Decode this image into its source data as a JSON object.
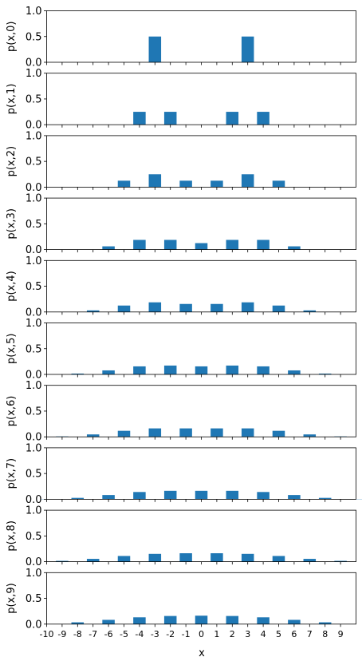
{
  "chart_data": {
    "type": "bar",
    "xlabel": "x",
    "x_ticks": [
      "-10",
      "-9",
      "-8",
      "-7",
      "-6",
      "-5",
      "-4",
      "-3",
      "-2",
      "-1",
      "0",
      "1",
      "2",
      "3",
      "4",
      "5",
      "6",
      "7",
      "8",
      "9"
    ],
    "x_range": [
      -10,
      10
    ],
    "ylim": [
      0,
      1.0
    ],
    "y_ticks": [
      "0.0",
      "0.5",
      "1.0"
    ],
    "bar_color": "#1f77b4",
    "grid": false,
    "subplots": [
      {
        "ylabel": "p(x,0)",
        "bars": [
          {
            "x": -3,
            "y": 0.5
          },
          {
            "x": 3,
            "y": 0.5
          }
        ]
      },
      {
        "ylabel": "p(x,1)",
        "bars": [
          {
            "x": -4,
            "y": 0.25
          },
          {
            "x": -2,
            "y": 0.25
          },
          {
            "x": 2,
            "y": 0.25
          },
          {
            "x": 4,
            "y": 0.25
          }
        ]
      },
      {
        "ylabel": "p(x,2)",
        "bars": [
          {
            "x": -5,
            "y": 0.125
          },
          {
            "x": -3,
            "y": 0.25
          },
          {
            "x": -1,
            "y": 0.125
          },
          {
            "x": 1,
            "y": 0.125
          },
          {
            "x": 3,
            "y": 0.25
          },
          {
            "x": 5,
            "y": 0.125
          }
        ]
      },
      {
        "ylabel": "p(x,3)",
        "bars": [
          {
            "x": -6,
            "y": 0.0625
          },
          {
            "x": -4,
            "y": 0.1875
          },
          {
            "x": -2,
            "y": 0.1875
          },
          {
            "x": 0,
            "y": 0.125
          },
          {
            "x": 2,
            "y": 0.1875
          },
          {
            "x": 4,
            "y": 0.1875
          },
          {
            "x": 6,
            "y": 0.0625
          }
        ]
      },
      {
        "ylabel": "p(x,4)",
        "bars": [
          {
            "x": -7,
            "y": 0.031
          },
          {
            "x": -5,
            "y": 0.125
          },
          {
            "x": -3,
            "y": 0.1875
          },
          {
            "x": -1,
            "y": 0.156
          },
          {
            "x": 1,
            "y": 0.156
          },
          {
            "x": 3,
            "y": 0.1875
          },
          {
            "x": 5,
            "y": 0.125
          },
          {
            "x": 7,
            "y": 0.031
          }
        ]
      },
      {
        "ylabel": "p(x,5)",
        "bars": [
          {
            "x": -8,
            "y": 0.016
          },
          {
            "x": -6,
            "y": 0.078
          },
          {
            "x": -4,
            "y": 0.156
          },
          {
            "x": -2,
            "y": 0.172
          },
          {
            "x": 0,
            "y": 0.156
          },
          {
            "x": 2,
            "y": 0.172
          },
          {
            "x": 4,
            "y": 0.156
          },
          {
            "x": 6,
            "y": 0.078
          },
          {
            "x": 8,
            "y": 0.016
          }
        ]
      },
      {
        "ylabel": "p(x,6)",
        "bars": [
          {
            "x": -9,
            "y": 0.008
          },
          {
            "x": -7,
            "y": 0.047
          },
          {
            "x": -5,
            "y": 0.117
          },
          {
            "x": -3,
            "y": 0.164
          },
          {
            "x": -1,
            "y": 0.164
          },
          {
            "x": 1,
            "y": 0.164
          },
          {
            "x": 3,
            "y": 0.164
          },
          {
            "x": 5,
            "y": 0.117
          },
          {
            "x": 7,
            "y": 0.047
          },
          {
            "x": 9,
            "y": 0.008
          }
        ]
      },
      {
        "ylabel": "p(x,7)",
        "bars": [
          {
            "x": -10,
            "y": 0.004
          },
          {
            "x": -8,
            "y": 0.027
          },
          {
            "x": -6,
            "y": 0.082
          },
          {
            "x": -4,
            "y": 0.141
          },
          {
            "x": -2,
            "y": 0.164
          },
          {
            "x": 0,
            "y": 0.164
          },
          {
            "x": 2,
            "y": 0.164
          },
          {
            "x": 4,
            "y": 0.141
          },
          {
            "x": 6,
            "y": 0.082
          },
          {
            "x": 8,
            "y": 0.027
          },
          {
            "x": 10,
            "y": 0.004
          }
        ]
      },
      {
        "ylabel": "p(x,8)",
        "bars": [
          {
            "x": -9,
            "y": 0.016
          },
          {
            "x": -7,
            "y": 0.055
          },
          {
            "x": -5,
            "y": 0.111
          },
          {
            "x": -3,
            "y": 0.152
          },
          {
            "x": -1,
            "y": 0.164
          },
          {
            "x": 1,
            "y": 0.164
          },
          {
            "x": 3,
            "y": 0.152
          },
          {
            "x": 5,
            "y": 0.111
          },
          {
            "x": 7,
            "y": 0.055
          },
          {
            "x": 9,
            "y": 0.016
          }
        ]
      },
      {
        "ylabel": "p(x,9)",
        "bars": [
          {
            "x": -8,
            "y": 0.035
          },
          {
            "x": -6,
            "y": 0.083
          },
          {
            "x": -4,
            "y": 0.132
          },
          {
            "x": -2,
            "y": 0.158
          },
          {
            "x": 0,
            "y": 0.164
          },
          {
            "x": 2,
            "y": 0.158
          },
          {
            "x": 4,
            "y": 0.132
          },
          {
            "x": 6,
            "y": 0.083
          },
          {
            "x": 8,
            "y": 0.035
          }
        ]
      }
    ]
  }
}
